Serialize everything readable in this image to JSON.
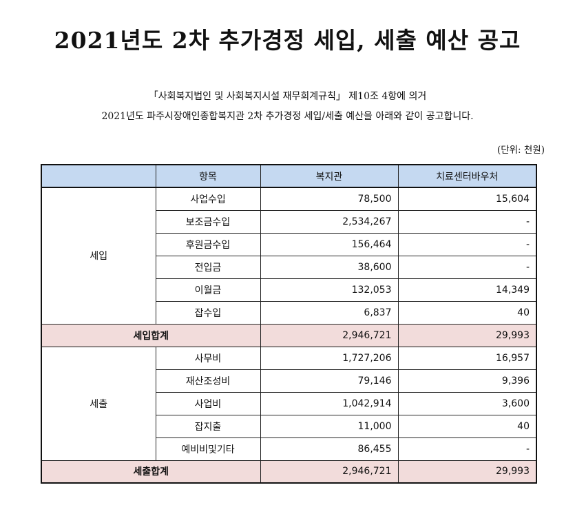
{
  "title": "2021년도 2차 추가경정 세입, 세출 예산 공고",
  "intro": {
    "line1": "「사회복지법인 및 사회복지시설 재무회계규칙」 제10조 4항에 의거",
    "line2": "2021년도 파주시장애인종합복지관 2차 추가경정 세입/세출 예산을 아래와 같이 공고합니다."
  },
  "unit": "(단위: 천원)",
  "table": {
    "headers": [
      "",
      "항목",
      "복지관",
      "치료센터바우처"
    ],
    "sections": [
      {
        "label": "세입",
        "rows": [
          {
            "item": "사업수입",
            "welfare": "78,500",
            "voucher": "15,604"
          },
          {
            "item": "보조금수입",
            "welfare": "2,534,267",
            "voucher": "-"
          },
          {
            "item": "후원금수입",
            "welfare": "156,464",
            "voucher": "-"
          },
          {
            "item": "전입금",
            "welfare": "38,600",
            "voucher": "-"
          },
          {
            "item": "이월금",
            "welfare": "132,053",
            "voucher": "14,349"
          },
          {
            "item": "잡수입",
            "welfare": "6,837",
            "voucher": "40"
          }
        ],
        "total": {
          "label": "세입합계",
          "welfare": "2,946,721",
          "voucher": "29,993"
        }
      },
      {
        "label": "세출",
        "rows": [
          {
            "item": "사무비",
            "welfare": "1,727,206",
            "voucher": "16,957"
          },
          {
            "item": "재산조성비",
            "welfare": "79,146",
            "voucher": "9,396"
          },
          {
            "item": "사업비",
            "welfare": "1,042,914",
            "voucher": "3,600"
          },
          {
            "item": "잡지출",
            "welfare": "11,000",
            "voucher": "40"
          },
          {
            "item": "예비비및기타",
            "welfare": "86,455",
            "voucher": "-"
          }
        ],
        "total": {
          "label": "세출합계",
          "welfare": "2,946,721",
          "voucher": "29,993"
        }
      }
    ]
  }
}
